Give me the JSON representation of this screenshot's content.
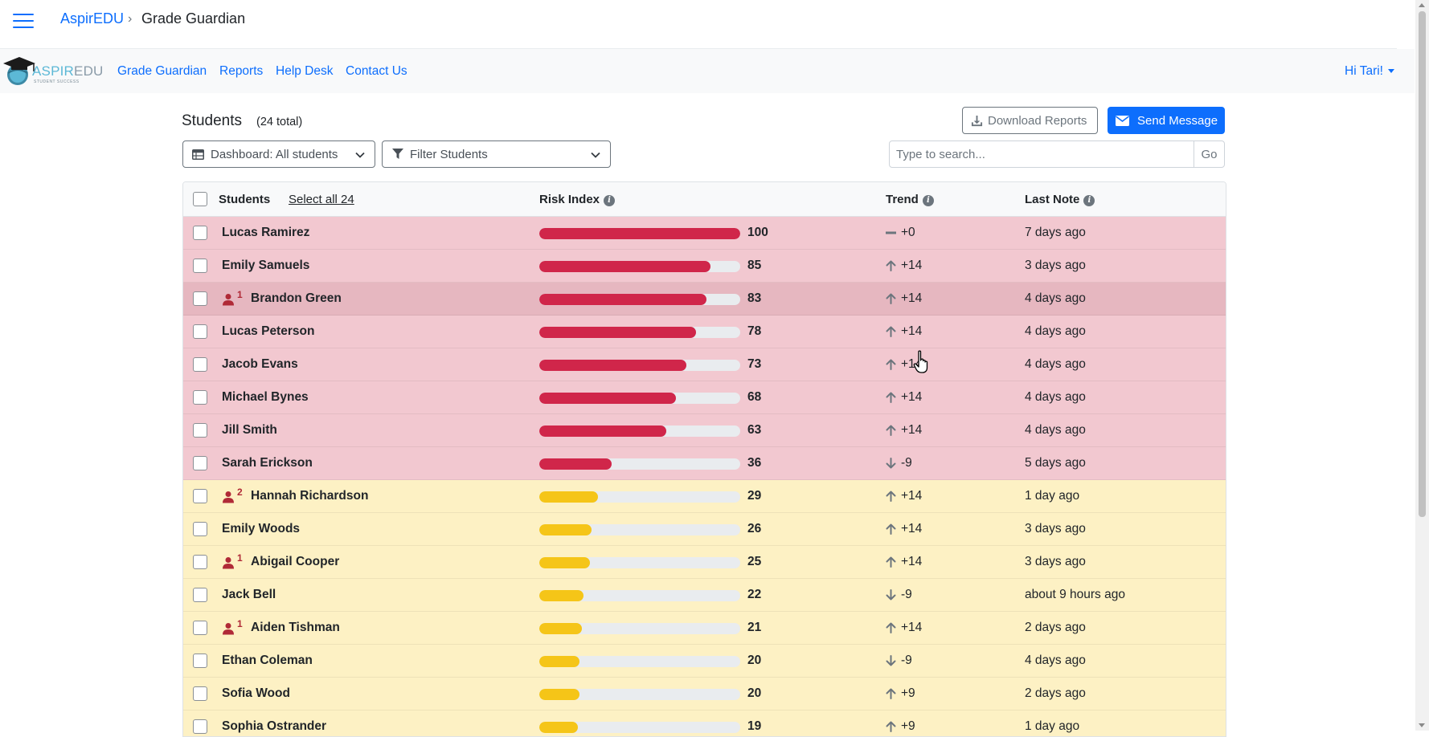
{
  "breadcrumb": {
    "home": "AspirEDU",
    "separator": "›",
    "current": "Grade Guardian"
  },
  "logo": {
    "text_a": "ASPIR",
    "text_b": "EDU",
    "tagline": "STUDENT SUCCESS"
  },
  "nav": {
    "links": [
      "Grade Guardian",
      "Reports",
      "Help Desk",
      "Contact Us"
    ],
    "user_menu": "Hi Tari!"
  },
  "students_header": {
    "title": "Students",
    "count": "(24 total)"
  },
  "buttons": {
    "download": "Download Reports",
    "send": "Send Message",
    "go": "Go"
  },
  "filters": {
    "dashboard": "Dashboard: All students",
    "filter": "Filter Students"
  },
  "search": {
    "placeholder": "Type to search...",
    "value": ""
  },
  "table": {
    "headers": {
      "students": "Students",
      "select_all": "Select all 24",
      "risk": "Risk Index",
      "trend": "Trend",
      "last_note": "Last Note"
    },
    "rows": [
      {
        "name": "Lucas Ramirez",
        "risk": 100,
        "trend_dir": "flat",
        "trend": "+0",
        "note": "7 days ago",
        "level": "red",
        "flag": ""
      },
      {
        "name": "Emily Samuels",
        "risk": 85,
        "trend_dir": "up",
        "trend": "+14",
        "note": "3 days ago",
        "level": "red",
        "flag": ""
      },
      {
        "name": "Brandon Green",
        "risk": 83,
        "trend_dir": "up",
        "trend": "+14",
        "note": "4 days ago",
        "level": "red",
        "flag": "1",
        "highlight": true
      },
      {
        "name": "Lucas Peterson",
        "risk": 78,
        "trend_dir": "up",
        "trend": "+14",
        "note": "4 days ago",
        "level": "red",
        "flag": ""
      },
      {
        "name": "Jacob Evans",
        "risk": 73,
        "trend_dir": "up",
        "trend": "+14",
        "note": "4 days ago",
        "level": "red",
        "flag": ""
      },
      {
        "name": "Michael Bynes",
        "risk": 68,
        "trend_dir": "up",
        "trend": "+14",
        "note": "4 days ago",
        "level": "red",
        "flag": ""
      },
      {
        "name": "Jill Smith",
        "risk": 63,
        "trend_dir": "up",
        "trend": "+14",
        "note": "4 days ago",
        "level": "red",
        "flag": ""
      },
      {
        "name": "Sarah Erickson",
        "risk": 36,
        "trend_dir": "down",
        "trend": "-9",
        "note": "5 days ago",
        "level": "red",
        "flag": ""
      },
      {
        "name": "Hannah Richardson",
        "risk": 29,
        "trend_dir": "up",
        "trend": "+14",
        "note": "1 day ago",
        "level": "yellow",
        "flag": "2"
      },
      {
        "name": "Emily Woods",
        "risk": 26,
        "trend_dir": "up",
        "trend": "+14",
        "note": "3 days ago",
        "level": "yellow",
        "flag": ""
      },
      {
        "name": "Abigail Cooper",
        "risk": 25,
        "trend_dir": "up",
        "trend": "+14",
        "note": "3 days ago",
        "level": "yellow",
        "flag": "1"
      },
      {
        "name": "Jack Bell",
        "risk": 22,
        "trend_dir": "down",
        "trend": "-9",
        "note": "about 9 hours ago",
        "level": "yellow",
        "flag": ""
      },
      {
        "name": "Aiden Tishman",
        "risk": 21,
        "trend_dir": "up",
        "trend": "+14",
        "note": "2 days ago",
        "level": "yellow",
        "flag": "1"
      },
      {
        "name": "Ethan Coleman",
        "risk": 20,
        "trend_dir": "down",
        "trend": "-9",
        "note": "4 days ago",
        "level": "yellow",
        "flag": ""
      },
      {
        "name": "Sofia Wood",
        "risk": 20,
        "trend_dir": "up",
        "trend": "+9",
        "note": "2 days ago",
        "level": "yellow",
        "flag": ""
      },
      {
        "name": "Sophia Ostrander",
        "risk": 19,
        "trend_dir": "up",
        "trend": "+9",
        "note": "1 day ago",
        "level": "yellow",
        "flag": ""
      }
    ]
  },
  "colors": {
    "primary": "#0d6efd",
    "risk_high": "#d0264a",
    "risk_medium": "#f5c518",
    "row_high": "#f2c8d0",
    "row_medium": "#fdf1c4"
  }
}
